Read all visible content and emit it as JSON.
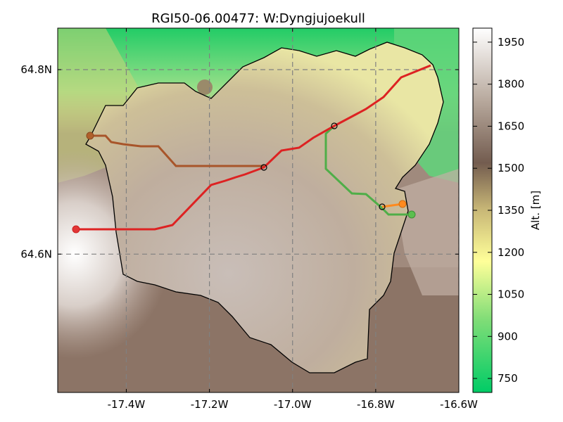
{
  "title": "RGI50-06.00477: W:Dyngjujoekull",
  "x_axis": {
    "ticks": [
      {
        "value": -17.4,
        "label": "-17.4W"
      },
      {
        "value": -17.2,
        "label": "-17.2W"
      },
      {
        "value": -17.0,
        "label": "-17.0W"
      },
      {
        "value": -16.8,
        "label": "-16.8W"
      },
      {
        "value": -16.6,
        "label": "-16.6W"
      }
    ],
    "range": [
      -17.565,
      -16.6
    ]
  },
  "y_axis": {
    "ticks": [
      {
        "value": 64.8,
        "label": "64.8N"
      },
      {
        "value": 64.6,
        "label": "64.6N"
      }
    ],
    "range": [
      64.45,
      64.845
    ]
  },
  "colorbar": {
    "label": "Alt. [m]",
    "ticks": [
      "750",
      "900",
      "1050",
      "1200",
      "1350",
      "1500",
      "1650",
      "1800",
      "1950"
    ],
    "range": [
      700,
      2000
    ],
    "colors": [
      "#00cc66",
      "#80dd77",
      "#ffff99",
      "#c9b877",
      "#735c4f",
      "#b7a89c",
      "#ffffff"
    ]
  },
  "grid": true,
  "flowlines": [
    {
      "name": "red",
      "color": "#dd2222"
    },
    {
      "name": "brown",
      "color": "#a8552a"
    },
    {
      "name": "green",
      "color": "#4fae48"
    },
    {
      "name": "orange",
      "color": "#ff8a1e"
    }
  ]
}
